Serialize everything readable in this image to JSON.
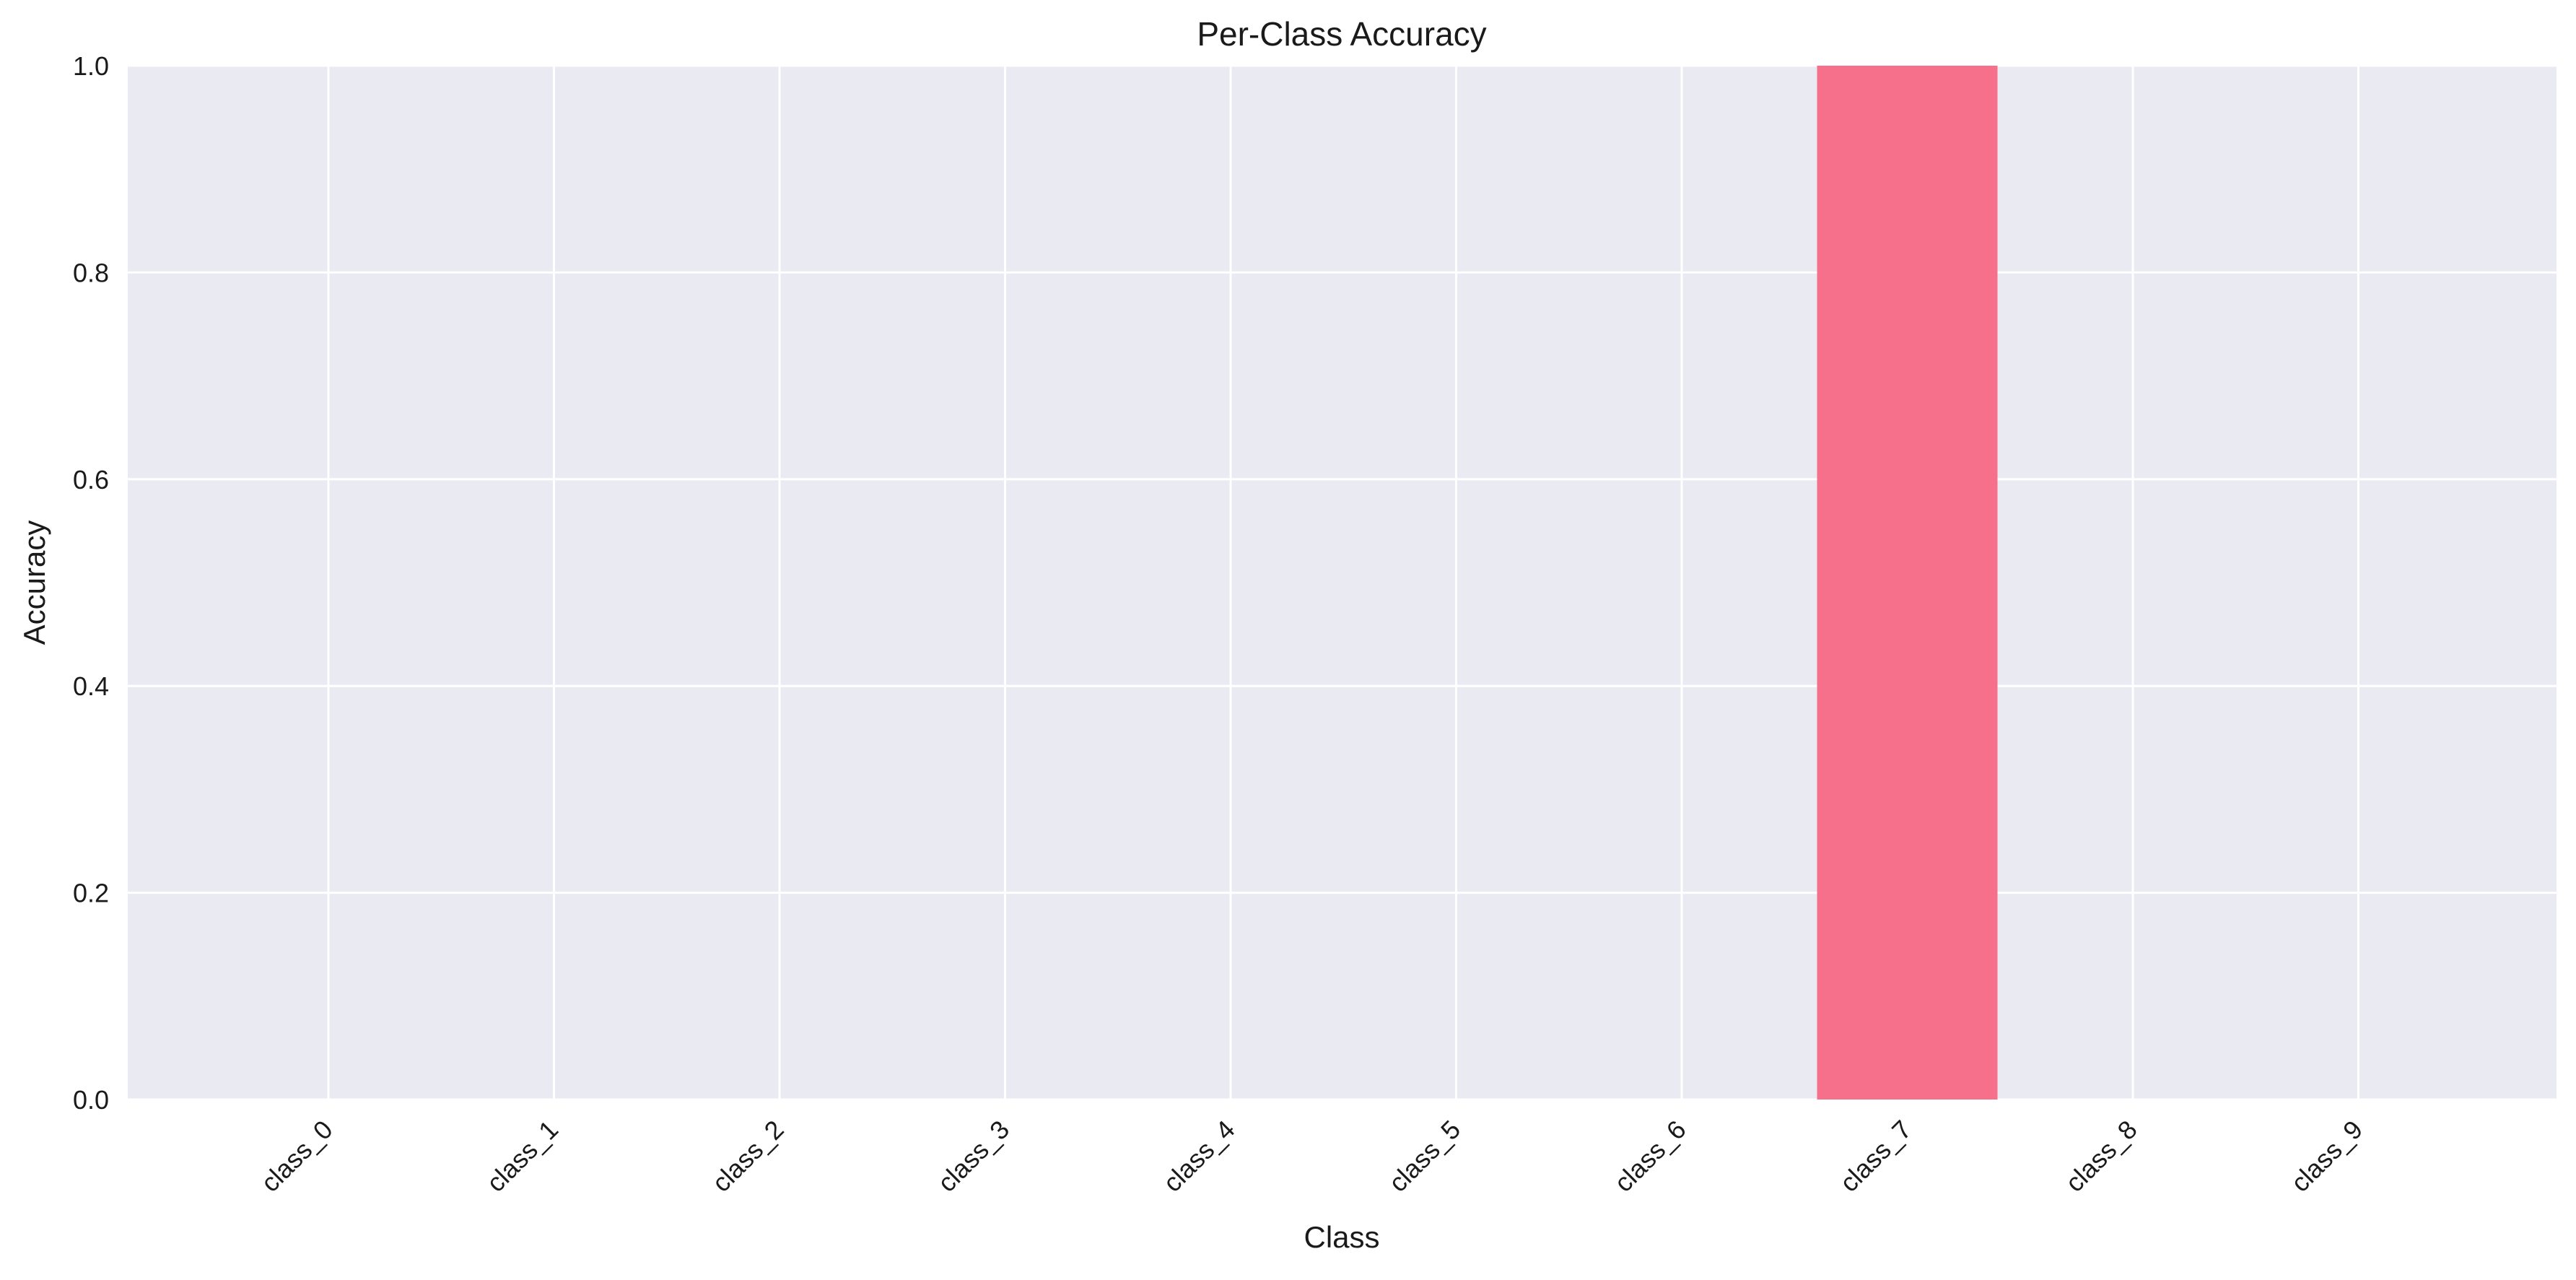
{
  "chart_data": {
    "type": "bar",
    "title": "Per-Class Accuracy",
    "xlabel": "Class",
    "ylabel": "Accuracy",
    "categories": [
      "class_0",
      "class_1",
      "class_2",
      "class_3",
      "class_4",
      "class_5",
      "class_6",
      "class_7",
      "class_8",
      "class_9"
    ],
    "values": [
      0.0,
      0.0,
      0.0,
      0.0,
      0.0,
      0.0,
      0.0,
      1.0,
      0.0,
      0.0
    ],
    "ylim": [
      0,
      1.0
    ],
    "yticks": [
      "0.0",
      "0.2",
      "0.4",
      "0.6",
      "0.8",
      "1.0"
    ],
    "grid": true,
    "colors": {
      "bar": "#f7708b",
      "plot_background": "#eaeaf2",
      "grid": "#ffffff"
    }
  }
}
